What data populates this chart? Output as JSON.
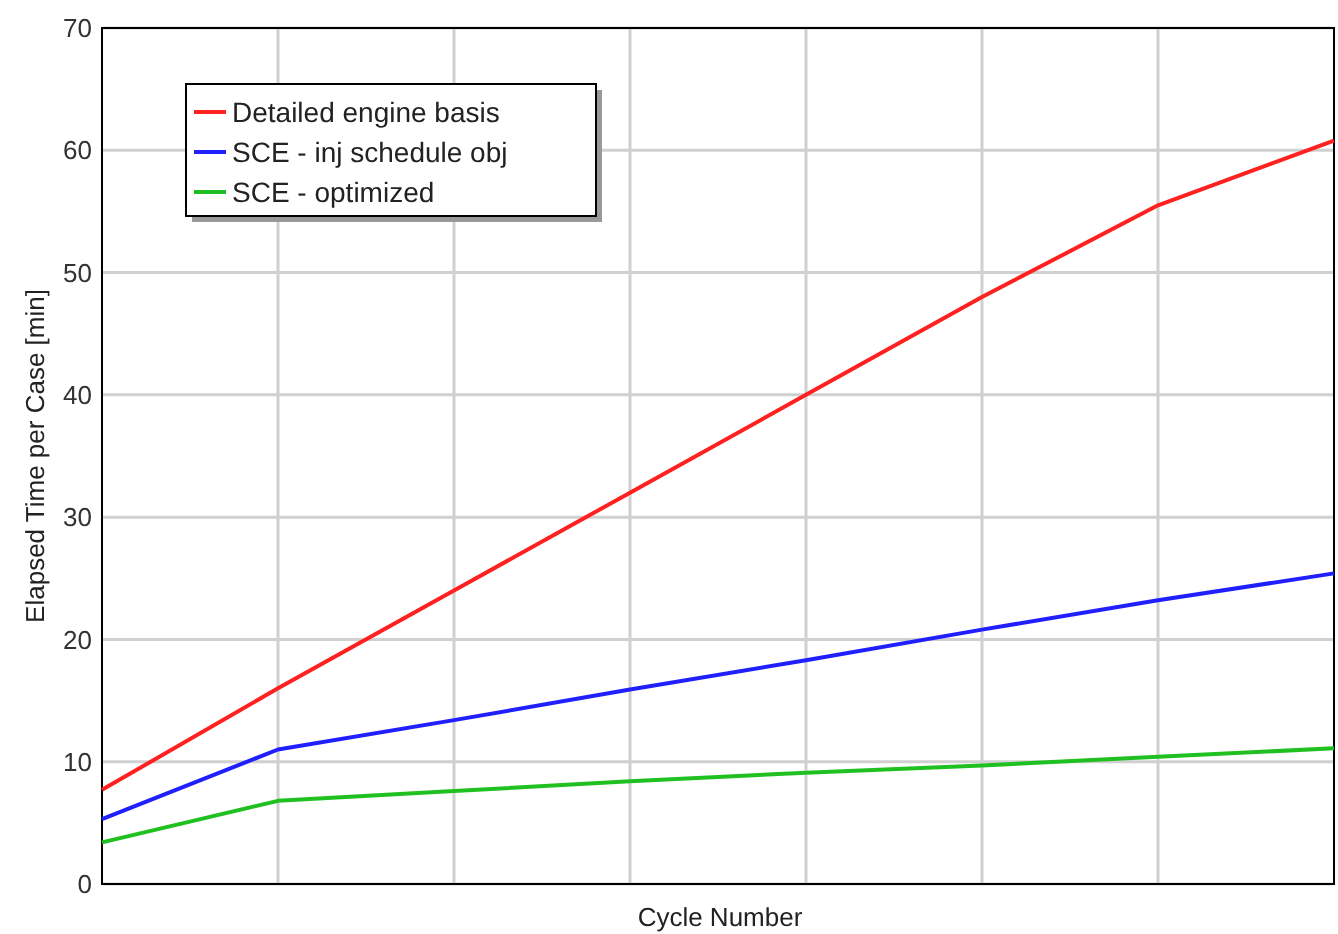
{
  "chart_data": {
    "type": "line",
    "xlabel": "Cycle Number",
    "ylabel": "Elapsed Time per Case [min]",
    "categories": [
      null,
      null,
      null,
      null,
      null,
      null,
      null,
      null
    ],
    "series": [
      {
        "name": "Detailed engine basis",
        "color": "#ff2020",
        "values": [
          7.7,
          16,
          24,
          32,
          40,
          48,
          55.5,
          60.8
        ]
      },
      {
        "name": "SCE - inj schedule obj",
        "color": "#2020ff",
        "values": [
          5.3,
          11,
          13.4,
          15.9,
          18.3,
          20.8,
          23.2,
          25.4
        ]
      },
      {
        "name": "SCE - optimized",
        "color": "#20c020",
        "values": [
          3.4,
          6.8,
          7.6,
          8.4,
          9.1,
          9.7,
          10.4,
          11.1
        ]
      }
    ],
    "ylim": [
      0,
      70
    ],
    "yticks": [
      0,
      10,
      20,
      30,
      40,
      50,
      60,
      70
    ],
    "grid": true,
    "legend": "top left",
    "marker": "none",
    "line_style": "solid"
  }
}
